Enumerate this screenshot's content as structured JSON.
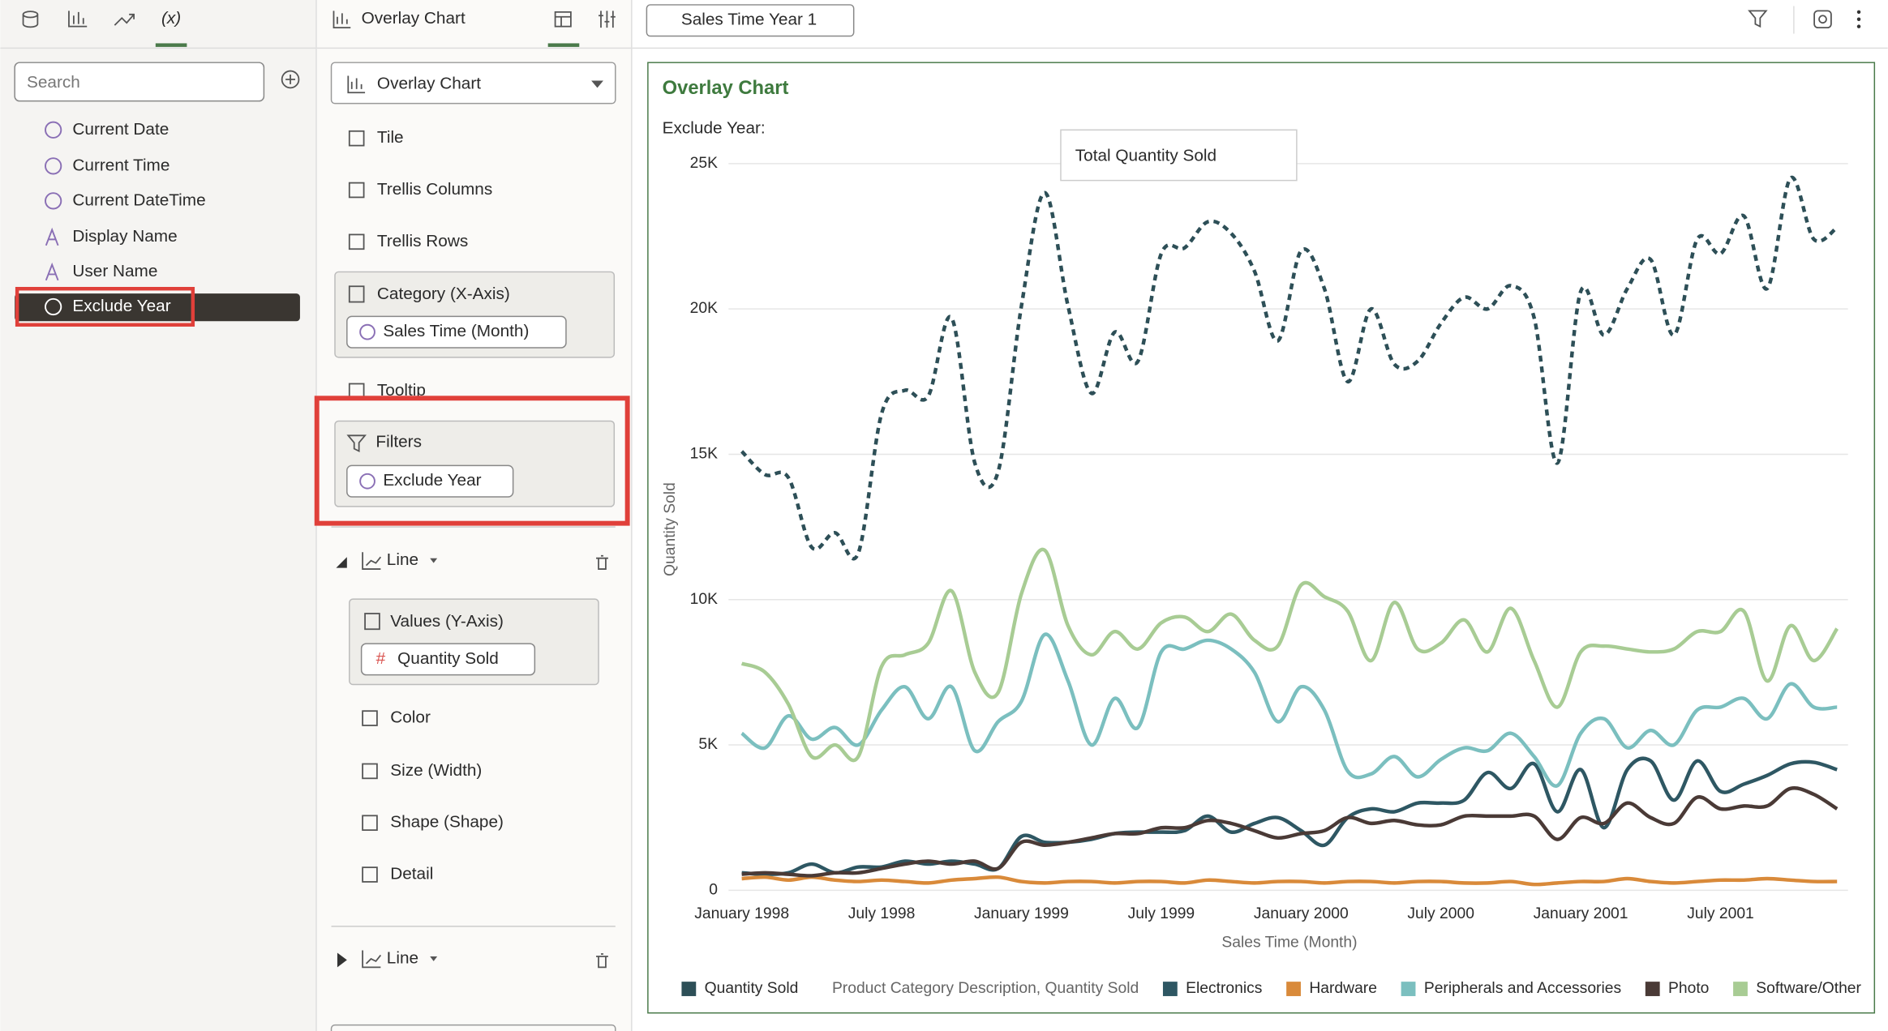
{
  "left_panel": {
    "search_placeholder": "Search",
    "items": [
      "Current Date",
      "Current Time",
      "Current DateTime",
      "Display Name",
      "User Name",
      "Exclude Year"
    ]
  },
  "middle_panel": {
    "header": "Overlay Chart",
    "chart_type": "Overlay Chart",
    "options": [
      "Tile",
      "Trellis Columns",
      "Trellis Rows"
    ],
    "category": {
      "label": "Category (X-Axis)",
      "field": "Sales Time (Month)"
    },
    "tooltip": "Tooltip",
    "filters": {
      "label": "Filters",
      "field": "Exclude Year"
    },
    "layers": [
      {
        "label": "Line",
        "values": {
          "label": "Values (Y-Axis)",
          "field": "Quantity Sold"
        },
        "options": [
          "Color",
          "Size (Width)",
          "Shape (Shape)",
          "Detail"
        ]
      },
      {
        "label": "Line"
      }
    ]
  },
  "canvas_tab": "Sales Time Year 1",
  "chart_data": {
    "type": "line",
    "title": "Overlay Chart",
    "subtitle": "Exclude Year:",
    "annotation": "Total Quantity Sold",
    "x_label": "Sales Time (Month)",
    "y_label": "Quantity Sold",
    "legend_title": "Product Category Description, Quantity Sold",
    "legend": "bottom",
    "grid": true,
    "categories": [
      "January 1998",
      null,
      null,
      null,
      null,
      null,
      "July 1998",
      null,
      null,
      null,
      null,
      null,
      "January 1999",
      null,
      null,
      null,
      null,
      null,
      "July 1999",
      null,
      null,
      null,
      null,
      null,
      "January 2000",
      null,
      null,
      null,
      null,
      null,
      "July 2000",
      null,
      null,
      null,
      null,
      null,
      "January 2001",
      null,
      null,
      null,
      null,
      null,
      "July 2001",
      null,
      null,
      null,
      null,
      null
    ],
    "ylim": [
      0,
      25000
    ],
    "yticks": [
      0,
      {
        "value": 5000,
        "label": "5K"
      },
      {
        "value": 10000,
        "label": "10K"
      },
      {
        "value": 15000,
        "label": "15K"
      },
      {
        "value": 20000,
        "label": "20K"
      },
      {
        "value": 25000,
        "label": "25K"
      }
    ],
    "series": [
      {
        "name": "Quantity Sold",
        "color": "#2d4f57",
        "dashed": true,
        "values": [
          15100,
          14300,
          14200,
          11800,
          12300,
          11600,
          16400,
          17200,
          17000,
          19700,
          14700,
          14400,
          20100,
          24000,
          20100,
          17100,
          19200,
          18200,
          21900,
          22100,
          23000,
          22600,
          21300,
          18900,
          22000,
          20700,
          17500,
          20000,
          18100,
          18200,
          19500,
          20400,
          20000,
          20800,
          19700,
          14700,
          20600,
          19100,
          20700,
          21700,
          19100,
          22400,
          21900,
          23200,
          20700,
          24500,
          22400,
          22800
        ]
      },
      {
        "name": "Electronics",
        "color": "#2e5763",
        "values": [
          600,
          550,
          600,
          900,
          600,
          800,
          800,
          1000,
          900,
          1000,
          900,
          750,
          1850,
          1650,
          1650,
          1750,
          1950,
          2000,
          2000,
          2050,
          2550,
          2000,
          2300,
          2500,
          2050,
          1550,
          2500,
          2800,
          2700,
          3000,
          3000,
          3100,
          4050,
          3500,
          4350,
          2700,
          4150,
          2150,
          4150,
          4450,
          3100,
          4450,
          3400,
          3650,
          3950,
          4350,
          4400,
          4150
        ]
      },
      {
        "name": "Hardware",
        "color": "#d98a3a",
        "values": [
          400,
          450,
          350,
          450,
          350,
          300,
          350,
          300,
          250,
          350,
          400,
          450,
          300,
          250,
          300,
          300,
          250,
          300,
          300,
          250,
          350,
          300,
          250,
          300,
          300,
          250,
          300,
          300,
          250,
          300,
          300,
          250,
          250,
          300,
          200,
          250,
          300,
          300,
          400,
          300,
          250,
          300,
          350,
          350,
          400,
          350,
          300,
          300
        ]
      },
      {
        "name": "Peripherals and Accessories",
        "color": "#7bbfbf",
        "values": [
          5400,
          4900,
          6000,
          5200,
          5600,
          5000,
          6200,
          7000,
          5900,
          7000,
          4800,
          5800,
          6500,
          8800,
          7200,
          5000,
          6600,
          5600,
          8200,
          8300,
          8600,
          8300,
          7500,
          5800,
          7000,
          6200,
          4100,
          4000,
          4600,
          3900,
          4500,
          4900,
          4800,
          5400,
          4600,
          3600,
          5400,
          5900,
          4900,
          5500,
          5000,
          6200,
          6300,
          6600,
          5900,
          7100,
          6300,
          6300
        ]
      },
      {
        "name": "Photo",
        "color": "#4a3a36",
        "values": [
          550,
          600,
          550,
          500,
          600,
          600,
          750,
          900,
          1000,
          900,
          1000,
          750,
          1650,
          1550,
          1650,
          1800,
          1950,
          1950,
          2150,
          2150,
          2400,
          2300,
          2050,
          1800,
          1950,
          2050,
          2500,
          2300,
          2400,
          2250,
          2250,
          2550,
          2550,
          2550,
          2550,
          1750,
          2500,
          2300,
          3000,
          2500,
          2300,
          3200,
          2800,
          2900,
          2900,
          3500,
          3300,
          2800
        ]
      },
      {
        "name": "Software/Other",
        "color": "#a8cc94",
        "values": [
          7800,
          7500,
          6400,
          4600,
          5000,
          4600,
          7700,
          8100,
          8500,
          10300,
          7500,
          6800,
          10200,
          11700,
          9100,
          8100,
          8900,
          8300,
          9200,
          9400,
          8900,
          9500,
          8600,
          8400,
          10500,
          10100,
          9600,
          7900,
          9900,
          8300,
          8500,
          9300,
          8200,
          9700,
          7900,
          6300,
          8200,
          8400,
          8300,
          8200,
          8300,
          8900,
          8900,
          9600,
          7200,
          9100,
          7900,
          9000
        ]
      }
    ]
  }
}
